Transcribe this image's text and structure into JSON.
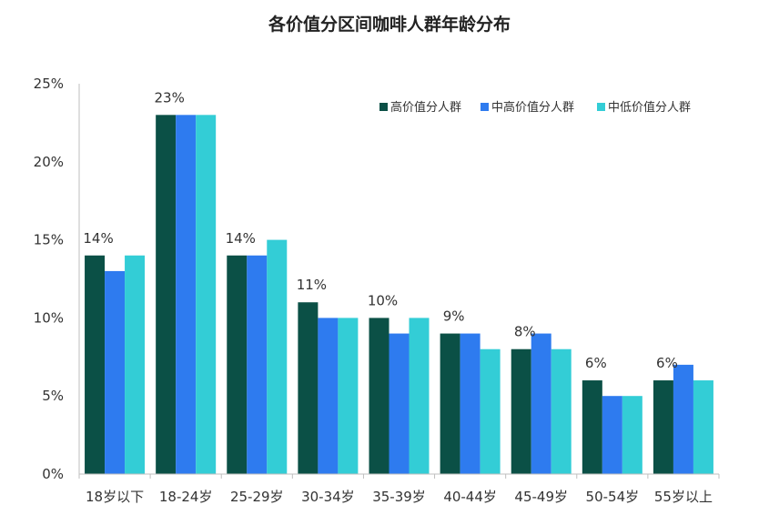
{
  "chart_data": {
    "type": "bar",
    "title": "各价值分区间咖啡人群年龄分布",
    "xlabel": "",
    "ylabel": "",
    "ylim": [
      0,
      25
    ],
    "yticks": [
      "0%",
      "5%",
      "10%",
      "15%",
      "20%",
      "25%"
    ],
    "categories": [
      "18岁以下",
      "18-24岁",
      "25-29岁",
      "30-34岁",
      "35-39岁",
      "40-44岁",
      "45-49岁",
      "50-54岁",
      "55岁以上"
    ],
    "series": [
      {
        "name": "高价值分人群",
        "color": "#0b5046",
        "values": [
          14,
          23,
          14,
          11,
          10,
          9,
          8,
          6,
          6
        ]
      },
      {
        "name": "中高价值分人群",
        "color": "#2e7bef",
        "values": [
          13,
          23,
          14,
          10,
          9,
          9,
          9,
          5,
          7
        ]
      },
      {
        "name": "中低价值分人群",
        "color": "#33cdd6",
        "values": [
          14,
          23,
          15,
          10,
          10,
          8,
          8,
          5,
          6
        ]
      }
    ],
    "data_labels": [
      "14%",
      "23%",
      "14%",
      "11%",
      "10%",
      "9%",
      "8%",
      "6%",
      "6%"
    ],
    "legend_position": "top-right",
    "grid": false
  }
}
